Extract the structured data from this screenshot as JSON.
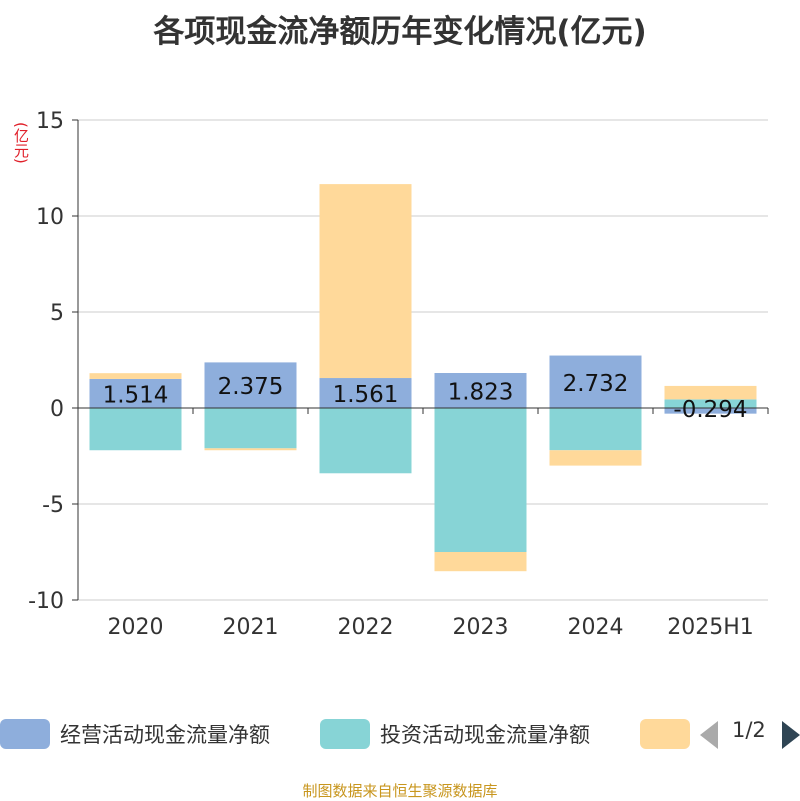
{
  "chart_data": {
    "type": "bar",
    "stacked": true,
    "title": "各项现金流净额历年变化情况(亿元)",
    "y_unit": "(亿元)",
    "categories": [
      "2020",
      "2021",
      "2022",
      "2023",
      "2024",
      "2025H1"
    ],
    "ylim": [
      -10,
      15
    ],
    "yticks": [
      -10,
      -5,
      0,
      5,
      10,
      15
    ],
    "grid": true,
    "series": [
      {
        "name": "经营活动现金流量净额",
        "color": "#8eaedc",
        "values": [
          1.514,
          2.375,
          1.561,
          1.823,
          2.732,
          -0.294
        ],
        "labels": [
          "1.514",
          "2.375",
          "1.561",
          "1.823",
          "2.732",
          "-0.294"
        ]
      },
      {
        "name": "投资活动现金流量净额",
        "color": "#87d4d6",
        "values": [
          -2.2,
          -2.1,
          -3.4,
          -7.5,
          -2.2,
          0.45
        ]
      },
      {
        "name": "",
        "color": "#ffd99a",
        "values": [
          0.3,
          -0.1,
          10.1,
          -1.0,
          -0.8,
          0.7
        ]
      }
    ],
    "legend": {
      "position": "bottom",
      "page": "1/2"
    }
  },
  "footer": {
    "source": "制图数据来自恒生聚源数据库"
  }
}
